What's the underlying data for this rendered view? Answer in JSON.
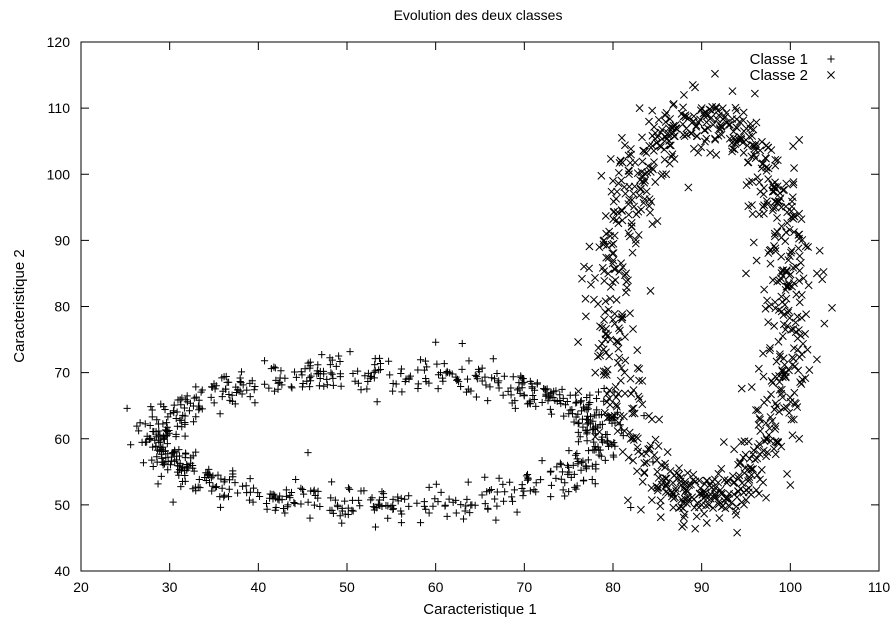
{
  "chart_data": {
    "type": "scatter",
    "title": "Evolution des deux classes",
    "xlabel": "Caracteristique 1",
    "ylabel": "Caracteristique 2",
    "xlim": [
      20,
      110
    ],
    "ylim": [
      40,
      120
    ],
    "xticks": [
      "20",
      "30",
      "40",
      "50",
      "60",
      "70",
      "80",
      "90",
      "100",
      "110"
    ],
    "yticks": [
      "40",
      "50",
      "60",
      "70",
      "80",
      "90",
      "100",
      "110",
      "120"
    ],
    "grid": false,
    "legend_position": "top-right",
    "series": [
      {
        "name": "Classe 1",
        "marker": "plus",
        "color": "#000000",
        "shape": {
          "kind": "ellipse",
          "center": [
            54,
            60
          ],
          "radius_x": 25,
          "radius_y": 10,
          "spread": 1.3
        },
        "points": [
          [
            25.2,
            64.6
          ],
          [
            25.6,
            59.1
          ],
          [
            26.5,
            61.2
          ],
          [
            27.8,
            62.0
          ],
          [
            28.5,
            60.3
          ],
          [
            29.0,
            58.7
          ],
          [
            30.4,
            57.9
          ],
          [
            31.3,
            62.8
          ],
          [
            32.0,
            65.6
          ],
          [
            33.0,
            66.3
          ],
          [
            35.0,
            68.3
          ],
          [
            40.7,
            71.8
          ],
          [
            45.6,
            57.9
          ],
          [
            49.8,
            48.6
          ],
          [
            53.4,
            65.6
          ],
          [
            58.0,
            67.6
          ],
          [
            60.0,
            74.6
          ],
          [
            63.0,
            74.4
          ],
          [
            66.5,
            72.1
          ],
          [
            70.0,
            66.5
          ],
          [
            72.0,
            56.7
          ],
          [
            75.0,
            52.0
          ],
          [
            78.0,
            53.2
          ],
          [
            79.0,
            67.6
          ],
          [
            80.5,
            64.0
          ],
          [
            82.0,
            49.6
          ],
          [
            83.5,
            63.5
          ],
          [
            84.5,
            56.5
          ]
        ]
      },
      {
        "name": "Classe 2",
        "marker": "cross",
        "color": "#000000",
        "shape": {
          "kind": "ellipse",
          "center": [
            90,
            79.5
          ],
          "radius_x": 10,
          "radius_y": 29,
          "spread": 1.6
        },
        "points": [
          [
            76.5,
            84.2
          ],
          [
            79.0,
            90.0
          ],
          [
            80.0,
            99.0
          ],
          [
            81.0,
            105.5
          ],
          [
            83.0,
            110.0
          ],
          [
            86.0,
            100.0
          ],
          [
            88.0,
            112.0
          ],
          [
            89.0,
            113.5
          ],
          [
            90.0,
            110.0
          ],
          [
            91.5,
            115.2
          ],
          [
            94.0,
            107.0
          ],
          [
            96.0,
            112.2
          ],
          [
            97.5,
            104.0
          ],
          [
            99.0,
            95.0
          ],
          [
            101.0,
            105.2
          ],
          [
            102.0,
            89.0
          ],
          [
            103.0,
            85.0
          ],
          [
            104.7,
            79.8
          ],
          [
            103.0,
            72.0
          ],
          [
            101.0,
            60.0
          ],
          [
            100.0,
            53.0
          ],
          [
            95.0,
            85.0
          ],
          [
            94.0,
            45.8
          ],
          [
            92.0,
            48.0
          ],
          [
            90.0,
            50.0
          ],
          [
            88.0,
            47.0
          ],
          [
            85.0,
            55.0
          ],
          [
            83.0,
            66.0
          ],
          [
            80.0,
            78.0
          ],
          [
            78.0,
            70.0
          ],
          [
            82.0,
            60.0
          ],
          [
            92.5,
            59.5
          ],
          [
            88.5,
            98.0
          ]
        ]
      }
    ]
  }
}
